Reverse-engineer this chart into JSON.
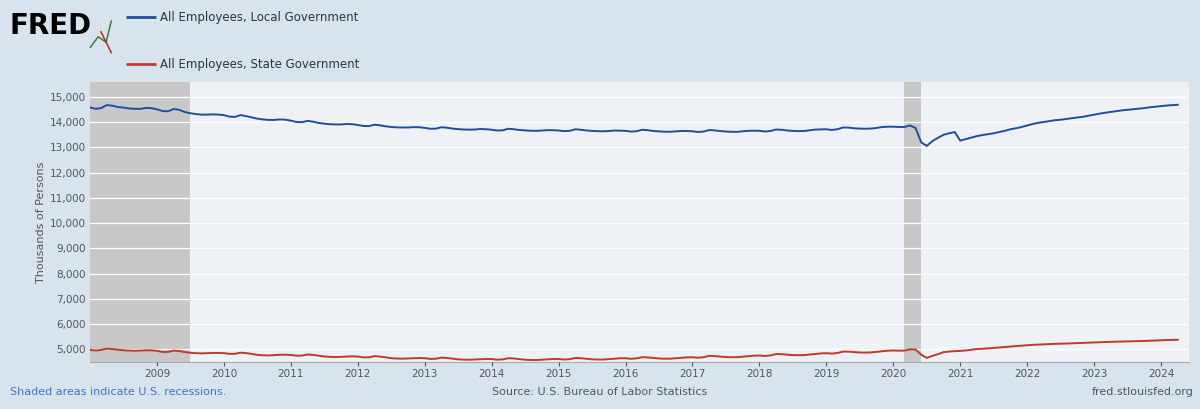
{
  "legend_labels": [
    "All Employees, Local Government",
    "All Employees, State Government"
  ],
  "line_colors": [
    "#1f4e9c",
    "#c0392b"
  ],
  "ylabel": "Thousands of Persons",
  "ylim": [
    4500,
    15600
  ],
  "yticks": [
    5000,
    6000,
    7000,
    8000,
    9000,
    10000,
    11000,
    12000,
    13000,
    14000,
    15000
  ],
  "background_color": "#d8e4ed",
  "plot_background": "#eef2f7",
  "recession_shades": [
    {
      "start": 2007.917,
      "end": 2009.5
    }
  ],
  "covid_shade": {
    "start": 2020.167,
    "end": 2020.417
  },
  "footer_left": "Shaded areas indicate U.S. recessions.",
  "footer_center": "Source: U.S. Bureau of Labor Statistics",
  "footer_right": "fred.stlouisfed.org",
  "local_gov_data": {
    "years": [
      2008.0,
      2008.083,
      2008.167,
      2008.25,
      2008.333,
      2008.417,
      2008.5,
      2008.583,
      2008.667,
      2008.75,
      2008.833,
      2008.917,
      2009.0,
      2009.083,
      2009.167,
      2009.25,
      2009.333,
      2009.417,
      2009.5,
      2009.583,
      2009.667,
      2009.75,
      2009.833,
      2009.917,
      2010.0,
      2010.083,
      2010.167,
      2010.25,
      2010.333,
      2010.417,
      2010.5,
      2010.583,
      2010.667,
      2010.75,
      2010.833,
      2010.917,
      2011.0,
      2011.083,
      2011.167,
      2011.25,
      2011.333,
      2011.417,
      2011.5,
      2011.583,
      2011.667,
      2011.75,
      2011.833,
      2011.917,
      2012.0,
      2012.083,
      2012.167,
      2012.25,
      2012.333,
      2012.417,
      2012.5,
      2012.583,
      2012.667,
      2012.75,
      2012.833,
      2012.917,
      2013.0,
      2013.083,
      2013.167,
      2013.25,
      2013.333,
      2013.417,
      2013.5,
      2013.583,
      2013.667,
      2013.75,
      2013.833,
      2013.917,
      2014.0,
      2014.083,
      2014.167,
      2014.25,
      2014.333,
      2014.417,
      2014.5,
      2014.583,
      2014.667,
      2014.75,
      2014.833,
      2014.917,
      2015.0,
      2015.083,
      2015.167,
      2015.25,
      2015.333,
      2015.417,
      2015.5,
      2015.583,
      2015.667,
      2015.75,
      2015.833,
      2015.917,
      2016.0,
      2016.083,
      2016.167,
      2016.25,
      2016.333,
      2016.417,
      2016.5,
      2016.583,
      2016.667,
      2016.75,
      2016.833,
      2016.917,
      2017.0,
      2017.083,
      2017.167,
      2017.25,
      2017.333,
      2017.417,
      2017.5,
      2017.583,
      2017.667,
      2017.75,
      2017.833,
      2017.917,
      2018.0,
      2018.083,
      2018.167,
      2018.25,
      2018.333,
      2018.417,
      2018.5,
      2018.583,
      2018.667,
      2018.75,
      2018.833,
      2018.917,
      2019.0,
      2019.083,
      2019.167,
      2019.25,
      2019.333,
      2019.417,
      2019.5,
      2019.583,
      2019.667,
      2019.75,
      2019.833,
      2019.917,
      2020.0,
      2020.083,
      2020.167,
      2020.25,
      2020.333,
      2020.417,
      2020.5,
      2020.583,
      2020.667,
      2020.75,
      2020.833,
      2020.917,
      2021.0,
      2021.083,
      2021.167,
      2021.25,
      2021.333,
      2021.417,
      2021.5,
      2021.583,
      2021.667,
      2021.75,
      2021.833,
      2021.917,
      2022.0,
      2022.083,
      2022.167,
      2022.25,
      2022.333,
      2022.417,
      2022.5,
      2022.583,
      2022.667,
      2022.75,
      2022.833,
      2022.917,
      2023.0,
      2023.083,
      2023.167,
      2023.25,
      2023.333,
      2023.417,
      2023.5,
      2023.583,
      2023.667,
      2023.75,
      2023.833,
      2023.917,
      2024.0,
      2024.083,
      2024.167,
      2024.25
    ],
    "values": [
      14584,
      14531,
      14557,
      14677,
      14656,
      14599,
      14580,
      14544,
      14529,
      14527,
      14564,
      14555,
      14509,
      14442,
      14432,
      14524,
      14490,
      14400,
      14354,
      14320,
      14300,
      14299,
      14310,
      14300,
      14280,
      14220,
      14210,
      14280,
      14240,
      14190,
      14140,
      14110,
      14090,
      14090,
      14110,
      14100,
      14060,
      14010,
      14000,
      14050,
      14020,
      13970,
      13940,
      13920,
      13910,
      13910,
      13930,
      13920,
      13890,
      13850,
      13845,
      13900,
      13875,
      13835,
      13810,
      13795,
      13790,
      13790,
      13805,
      13800,
      13775,
      13740,
      13745,
      13800,
      13780,
      13745,
      13725,
      13710,
      13705,
      13710,
      13730,
      13720,
      13700,
      13670,
      13680,
      13740,
      13720,
      13690,
      13675,
      13660,
      13658,
      13668,
      13685,
      13682,
      13670,
      13645,
      13658,
      13718,
      13700,
      13672,
      13655,
      13643,
      13640,
      13650,
      13668,
      13665,
      13655,
      13628,
      13642,
      13700,
      13682,
      13650,
      13635,
      13622,
      13620,
      13635,
      13652,
      13650,
      13640,
      13612,
      13630,
      13688,
      13675,
      13648,
      13630,
      13618,
      13618,
      13638,
      13658,
      13662,
      13658,
      13630,
      13652,
      13710,
      13698,
      13670,
      13655,
      13645,
      13652,
      13678,
      13705,
      13715,
      13718,
      13692,
      13722,
      13790,
      13785,
      13758,
      13745,
      13740,
      13748,
      13772,
      13808,
      13820,
      13820,
      13810,
      13810,
      13870,
      13768,
      13200,
      13060,
      13250,
      13380,
      13500,
      13560,
      13610,
      13270,
      13330,
      13390,
      13450,
      13490,
      13525,
      13560,
      13610,
      13660,
      13720,
      13760,
      13810,
      13870,
      13930,
      13975,
      14010,
      14048,
      14078,
      14098,
      14128,
      14158,
      14188,
      14215,
      14255,
      14298,
      14340,
      14375,
      14408,
      14438,
      14468,
      14490,
      14510,
      14530,
      14558,
      14590,
      14615,
      14638,
      14660,
      14675,
      14690
    ]
  },
  "state_gov_data": {
    "years": [
      2008.0,
      2008.083,
      2008.167,
      2008.25,
      2008.333,
      2008.417,
      2008.5,
      2008.583,
      2008.667,
      2008.75,
      2008.833,
      2008.917,
      2009.0,
      2009.083,
      2009.167,
      2009.25,
      2009.333,
      2009.417,
      2009.5,
      2009.583,
      2009.667,
      2009.75,
      2009.833,
      2009.917,
      2010.0,
      2010.083,
      2010.167,
      2010.25,
      2010.333,
      2010.417,
      2010.5,
      2010.583,
      2010.667,
      2010.75,
      2010.833,
      2010.917,
      2011.0,
      2011.083,
      2011.167,
      2011.25,
      2011.333,
      2011.417,
      2011.5,
      2011.583,
      2011.667,
      2011.75,
      2011.833,
      2011.917,
      2012.0,
      2012.083,
      2012.167,
      2012.25,
      2012.333,
      2012.417,
      2012.5,
      2012.583,
      2012.667,
      2012.75,
      2012.833,
      2012.917,
      2013.0,
      2013.083,
      2013.167,
      2013.25,
      2013.333,
      2013.417,
      2013.5,
      2013.583,
      2013.667,
      2013.75,
      2013.833,
      2013.917,
      2014.0,
      2014.083,
      2014.167,
      2014.25,
      2014.333,
      2014.417,
      2014.5,
      2014.583,
      2014.667,
      2014.75,
      2014.833,
      2014.917,
      2015.0,
      2015.083,
      2015.167,
      2015.25,
      2015.333,
      2015.417,
      2015.5,
      2015.583,
      2015.667,
      2015.75,
      2015.833,
      2015.917,
      2016.0,
      2016.083,
      2016.167,
      2016.25,
      2016.333,
      2016.417,
      2016.5,
      2016.583,
      2016.667,
      2016.75,
      2016.833,
      2016.917,
      2017.0,
      2017.083,
      2017.167,
      2017.25,
      2017.333,
      2017.417,
      2017.5,
      2017.583,
      2017.667,
      2017.75,
      2017.833,
      2017.917,
      2018.0,
      2018.083,
      2018.167,
      2018.25,
      2018.333,
      2018.417,
      2018.5,
      2018.583,
      2018.667,
      2018.75,
      2018.833,
      2018.917,
      2019.0,
      2019.083,
      2019.167,
      2019.25,
      2019.333,
      2019.417,
      2019.5,
      2019.583,
      2019.667,
      2019.75,
      2019.833,
      2019.917,
      2020.0,
      2020.083,
      2020.167,
      2020.25,
      2020.333,
      2020.417,
      2020.5,
      2020.583,
      2020.667,
      2020.75,
      2020.833,
      2020.917,
      2021.0,
      2021.083,
      2021.167,
      2021.25,
      2021.333,
      2021.417,
      2021.5,
      2021.583,
      2021.667,
      2021.75,
      2021.833,
      2021.917,
      2022.0,
      2022.083,
      2022.167,
      2022.25,
      2022.333,
      2022.417,
      2022.5,
      2022.583,
      2022.667,
      2022.75,
      2022.833,
      2022.917,
      2023.0,
      2023.083,
      2023.167,
      2023.25,
      2023.333,
      2023.417,
      2023.5,
      2023.583,
      2023.667,
      2023.75,
      2023.833,
      2023.917,
      2024.0,
      2024.083,
      2024.167,
      2024.25
    ],
    "values": [
      4979,
      4955,
      4978,
      5028,
      5009,
      4985,
      4963,
      4953,
      4944,
      4950,
      4963,
      4962,
      4943,
      4897,
      4900,
      4952,
      4932,
      4893,
      4865,
      4848,
      4840,
      4848,
      4858,
      4858,
      4850,
      4822,
      4825,
      4868,
      4852,
      4818,
      4782,
      4765,
      4758,
      4772,
      4785,
      4788,
      4778,
      4748,
      4752,
      4798,
      4780,
      4750,
      4718,
      4703,
      4695,
      4705,
      4718,
      4722,
      4714,
      4682,
      4686,
      4730,
      4714,
      4682,
      4650,
      4636,
      4630,
      4638,
      4650,
      4655,
      4648,
      4620,
      4628,
      4672,
      4658,
      4630,
      4604,
      4592,
      4588,
      4598,
      4612,
      4618,
      4615,
      4590,
      4602,
      4648,
      4636,
      4610,
      4588,
      4578,
      4576,
      4590,
      4608,
      4616,
      4618,
      4595,
      4612,
      4658,
      4648,
      4625,
      4605,
      4596,
      4596,
      4612,
      4630,
      4645,
      4648,
      4626,
      4644,
      4690,
      4680,
      4658,
      4638,
      4630,
      4630,
      4648,
      4666,
      4682,
      4688,
      4668,
      4690,
      4742,
      4734,
      4712,
      4695,
      4688,
      4690,
      4710,
      4730,
      4748,
      4755,
      4738,
      4760,
      4815,
      4808,
      4788,
      4772,
      4768,
      4772,
      4795,
      4818,
      4838,
      4848,
      4832,
      4858,
      4912,
      4908,
      4890,
      4875,
      4872,
      4878,
      4902,
      4928,
      4946,
      4955,
      4948,
      4952,
      5002,
      4992,
      4785,
      4660,
      4740,
      4808,
      4888,
      4912,
      4928,
      4938,
      4955,
      4982,
      5012,
      5025,
      5038,
      5058,
      5075,
      5092,
      5112,
      5130,
      5148,
      5162,
      5178,
      5188,
      5200,
      5208,
      5218,
      5222,
      5230,
      5238,
      5244,
      5250,
      5260,
      5270,
      5280,
      5290,
      5298,
      5304,
      5310,
      5315,
      5320,
      5325,
      5332,
      5342,
      5352,
      5360,
      5368,
      5374,
      5380
    ]
  },
  "xmin": 2008.0,
  "xmax": 2024.42,
  "xtick_years": [
    2009,
    2010,
    2011,
    2012,
    2013,
    2014,
    2015,
    2016,
    2017,
    2018,
    2019,
    2020,
    2021,
    2022,
    2023,
    2024
  ]
}
